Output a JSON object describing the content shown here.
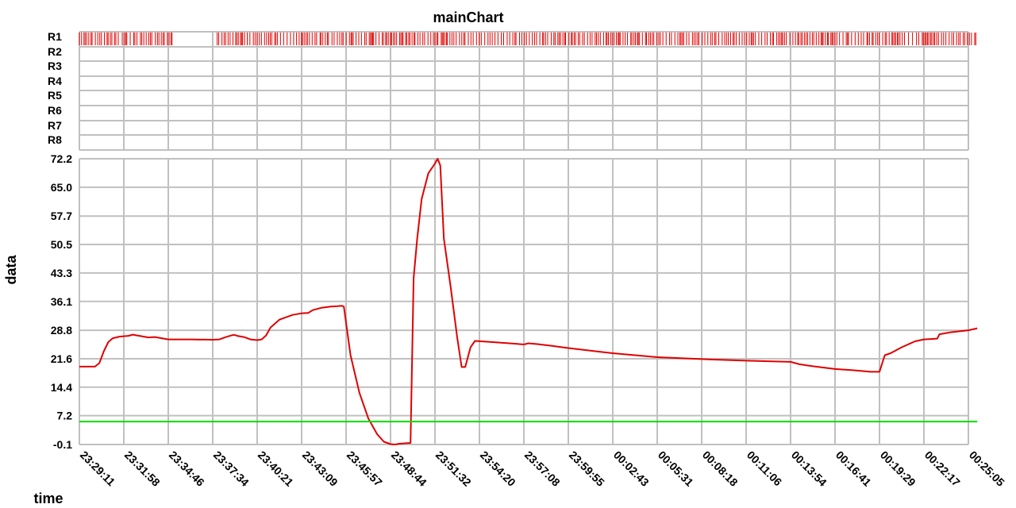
{
  "chart_data": {
    "type": "line",
    "title": "mainChart",
    "xlabel": "time",
    "ylabel": "data",
    "ylim": [
      -0.1,
      72.2
    ],
    "grid": true,
    "event_rows": [
      "R1",
      "R2",
      "R3",
      "R4",
      "R5",
      "R6",
      "R7",
      "R8"
    ],
    "y_ticks": [
      "72.2",
      "65.0",
      "57.7",
      "50.5",
      "43.3",
      "36.1",
      "28.8",
      "21.6",
      "14.4",
      "7.2",
      "-0.1"
    ],
    "y_tick_values": [
      72.2,
      65.0,
      57.7,
      50.5,
      43.3,
      36.1,
      28.8,
      21.6,
      14.4,
      7.2,
      -0.1
    ],
    "x_ticks": [
      "23:29:11",
      "23:31:58",
      "23:34:46",
      "23:37:34",
      "23:40:21",
      "23:43:09",
      "23:45:57",
      "23:48:44",
      "23:51:32",
      "23:54:20",
      "23:57:08",
      "23:59:55",
      "00:02:43",
      "00:05:31",
      "00:08:18",
      "00:11:06",
      "00:13:54",
      "00:16:41",
      "00:19:29",
      "00:22:17",
      "00:25:05"
    ],
    "x_index_range": [
      0,
      20
    ],
    "series": [
      {
        "color": "#e00000",
        "points": [
          [
            0.0,
            19.6
          ],
          [
            0.35,
            19.6
          ],
          [
            0.45,
            20.5
          ],
          [
            0.55,
            23.5
          ],
          [
            0.65,
            25.8
          ],
          [
            0.75,
            26.8
          ],
          [
            0.9,
            27.2
          ],
          [
            1.1,
            27.4
          ],
          [
            1.2,
            27.7
          ],
          [
            1.4,
            27.3
          ],
          [
            1.55,
            27.0
          ],
          [
            1.7,
            27.1
          ],
          [
            1.85,
            26.8
          ],
          [
            2.0,
            26.5
          ],
          [
            2.5,
            26.5
          ],
          [
            3.0,
            26.4
          ],
          [
            3.15,
            26.5
          ],
          [
            3.3,
            27.1
          ],
          [
            3.45,
            27.6
          ],
          [
            3.5,
            27.6
          ],
          [
            3.55,
            27.4
          ],
          [
            3.7,
            27.1
          ],
          [
            3.85,
            26.5
          ],
          [
            4.0,
            26.3
          ],
          [
            4.1,
            26.5
          ],
          [
            4.2,
            27.5
          ],
          [
            4.3,
            29.5
          ],
          [
            4.5,
            31.5
          ],
          [
            4.65,
            32.1
          ],
          [
            4.8,
            32.7
          ],
          [
            5.0,
            33.1
          ],
          [
            5.15,
            33.2
          ],
          [
            5.25,
            33.9
          ],
          [
            5.45,
            34.5
          ],
          [
            5.65,
            34.8
          ],
          [
            5.8,
            34.9
          ],
          [
            5.9,
            35.0
          ],
          [
            5.95,
            34.8
          ],
          [
            6.1,
            22.5
          ],
          [
            6.3,
            13.0
          ],
          [
            6.5,
            6.5
          ],
          [
            6.7,
            2.5
          ],
          [
            6.85,
            0.6
          ],
          [
            7.0,
            0.0
          ],
          [
            7.1,
            -0.1
          ],
          [
            7.2,
            0.1
          ],
          [
            7.45,
            0.3
          ],
          [
            7.52,
            42.0
          ],
          [
            7.6,
            52.0
          ],
          [
            7.7,
            62.0
          ],
          [
            7.85,
            68.5
          ],
          [
            8.0,
            71.0
          ],
          [
            8.06,
            72.2
          ],
          [
            8.12,
            70.5
          ],
          [
            8.2,
            52.0
          ],
          [
            8.35,
            40.0
          ],
          [
            8.5,
            27.0
          ],
          [
            8.6,
            19.5
          ],
          [
            8.68,
            19.5
          ],
          [
            8.8,
            24.5
          ],
          [
            8.9,
            26.1
          ],
          [
            9.3,
            25.8
          ],
          [
            9.8,
            25.4
          ],
          [
            10.0,
            25.2
          ],
          [
            10.1,
            25.5
          ],
          [
            10.3,
            25.3
          ],
          [
            10.6,
            24.9
          ],
          [
            11.0,
            24.3
          ],
          [
            12.0,
            23.0
          ],
          [
            13.0,
            22.0
          ],
          [
            14.0,
            21.5
          ],
          [
            15.0,
            21.1
          ],
          [
            16.0,
            20.8
          ],
          [
            16.2,
            20.2
          ],
          [
            16.5,
            19.7
          ],
          [
            17.0,
            19.0
          ],
          [
            17.4,
            18.7
          ],
          [
            17.8,
            18.3
          ],
          [
            18.0,
            18.3
          ],
          [
            18.12,
            22.5
          ],
          [
            18.25,
            23.0
          ],
          [
            18.5,
            24.5
          ],
          [
            18.8,
            26.0
          ],
          [
            19.0,
            26.5
          ],
          [
            19.3,
            26.7
          ],
          [
            19.35,
            27.8
          ],
          [
            19.6,
            28.3
          ],
          [
            20.0,
            28.8
          ],
          [
            20.2,
            29.3
          ]
        ]
      },
      {
        "color": "#00e000",
        "points": [
          [
            0.0,
            5.7
          ],
          [
            20.2,
            5.7
          ]
        ]
      }
    ],
    "r1_events": {
      "color": "#e00000",
      "active_ranges": [
        [
          0.0,
          2.1
        ],
        [
          3.1,
          20.2
        ]
      ],
      "sparse_ranges": [
        [
          0.85,
          0.95
        ],
        [
          18.55,
          18.8
        ]
      ]
    }
  }
}
